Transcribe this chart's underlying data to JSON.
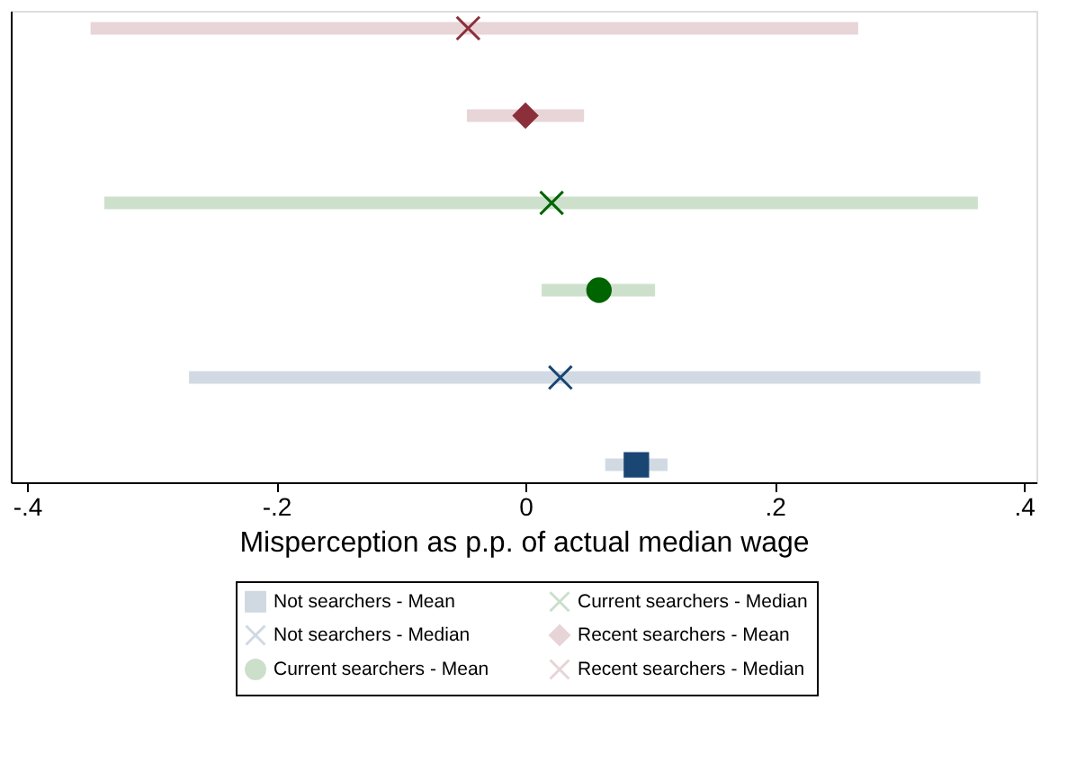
{
  "chart_data": {
    "type": "scatter",
    "orientation": "horizontal",
    "xlabel": "Misperception as p.p. of actual median wage",
    "categories": [
      null,
      null,
      null,
      null,
      null,
      null
    ],
    "xlim": [
      -0.413,
      0.41
    ],
    "xticks": [
      {
        "value": -0.4,
        "label": "-.4"
      },
      {
        "value": -0.2,
        "label": "-.2"
      },
      0,
      {
        "value": 0.2,
        "label": ".2"
      },
      {
        "value": 0.4,
        "label": ".4"
      }
    ],
    "series": [
      {
        "name": "Not searchers - Mean",
        "color": "#1a4674",
        "marker": "square",
        "values": [
          null,
          null,
          null,
          null,
          null,
          0.089
        ],
        "errors": [
          null,
          null,
          null,
          null,
          null,
          [
            0.064,
            0.114
          ]
        ]
      },
      {
        "name": "Not searchers - Median",
        "color": "#1a4674",
        "marker": "cross",
        "values": [
          null,
          null,
          null,
          null,
          0.028,
          null
        ],
        "errors": [
          null,
          null,
          null,
          null,
          [
            -0.27,
            0.365
          ],
          null
        ]
      },
      {
        "name": "Current searchers - Mean",
        "color": "#006400",
        "marker": "circle",
        "values": [
          null,
          null,
          null,
          0.059,
          null,
          null
        ],
        "errors": [
          null,
          null,
          null,
          [
            0.013,
            0.104
          ],
          null,
          null
        ]
      },
      {
        "name": "Current searchers - Median",
        "color": "#006400",
        "marker": "cross",
        "values": [
          null,
          null,
          0.021,
          null,
          null,
          null
        ],
        "errors": [
          null,
          null,
          [
            -0.338,
            0.363
          ],
          null,
          null,
          null
        ]
      },
      {
        "name": "Recent searchers - Mean",
        "color": "#8b2f3a",
        "marker": "diamond",
        "values": [
          null,
          0,
          null,
          null,
          null,
          null
        ],
        "errors": [
          null,
          [
            -0.047,
            0.047
          ],
          null,
          null,
          null,
          null
        ]
      },
      {
        "name": "Recent searchers - Median",
        "color": "#8b2f3a",
        "marker": "cross",
        "values": [
          -0.046,
          null,
          null,
          null,
          null,
          null
        ],
        "errors": [
          [
            -0.349,
            0.267
          ],
          null,
          null,
          null,
          null,
          null
        ]
      }
    ],
    "grid": false,
    "legend": "bottom",
    "tick_labels": "x"
  }
}
